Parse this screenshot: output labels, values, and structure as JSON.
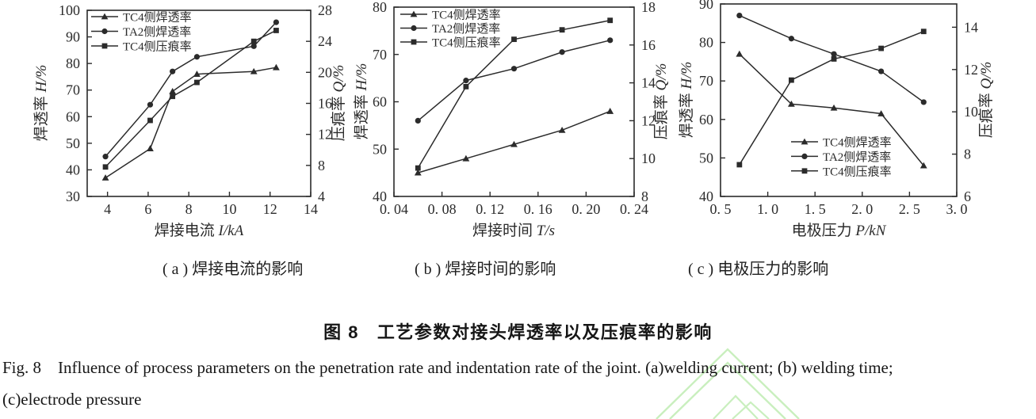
{
  "figure": {
    "caption_cn": "图 8   工艺参数对接头焊透率以及压痕率的影响",
    "caption_en_line1": "Fig. 8    Influence of process parameters on the penetration rate and indentation rate of the joint. (a)welding current; (b) welding time;",
    "caption_en_line2": "(c)electrode pressure",
    "subcaptions": [
      "( a ) 焊接电流的影响",
      "( b ) 焊接时间的影响",
      "( c ) 电极压力的影响"
    ]
  },
  "colors": {
    "line": "#2b2b2b",
    "text": "#1f1f1f",
    "watermark": "#c9efbe",
    "background": "#ffffff"
  },
  "chart_data": [
    {
      "type": "line",
      "panel": "a",
      "title": "",
      "xlabel": "焊接电流 I/kA",
      "ylabel_left": "焊透率 H/%",
      "ylabel_right": "压痕率 Q/%",
      "x_range": [
        3,
        14
      ],
      "x_tick_values": [
        4,
        6,
        8,
        10,
        12,
        14
      ],
      "x_tick_labels": [
        "4",
        "6",
        "8",
        "10",
        "12",
        "14"
      ],
      "y_left_range": [
        30,
        100
      ],
      "y_left_ticks": [
        30,
        40,
        50,
        60,
        70,
        80,
        90,
        100
      ],
      "y_right_range": [
        4,
        28
      ],
      "y_right_ticks": [
        4,
        8,
        12,
        16,
        20,
        24,
        28
      ],
      "grid": false,
      "legend_position": "top-left",
      "x": [
        3.9,
        6.1,
        7.2,
        8.4,
        11.2,
        12.3
      ],
      "series": [
        {
          "name": "TC4侧焊透率",
          "marker": "triangle",
          "axis": "left",
          "values": [
            37,
            48,
            69.5,
            76,
            77,
            78.5
          ]
        },
        {
          "name": "TA2侧焊透率",
          "marker": "circle",
          "axis": "left",
          "values": [
            45,
            64.5,
            77,
            82.5,
            86.5,
            95.5
          ]
        },
        {
          "name": "TC4侧压痕率",
          "marker": "square",
          "axis": "right",
          "values": [
            7.8,
            13.8,
            16.9,
            18.7,
            24,
            25.4
          ]
        }
      ]
    },
    {
      "type": "line",
      "panel": "b",
      "title": "",
      "xlabel": "焊接时间 T/s",
      "ylabel_left": "焊透率 H/%",
      "ylabel_right": "压痕率 Q/%",
      "x_range": [
        0.04,
        0.24
      ],
      "x_tick_values": [
        0.04,
        0.08,
        0.12,
        0.16,
        0.2,
        0.24
      ],
      "x_tick_labels": [
        "0. 04",
        "0. 08",
        "0. 12",
        "0. 16",
        "0. 20",
        "0. 24"
      ],
      "y_left_range": [
        40,
        80
      ],
      "y_left_ticks": [
        40,
        50,
        60,
        70,
        80
      ],
      "y_right_range": [
        8,
        18
      ],
      "y_right_ticks": [
        8,
        10,
        12,
        14,
        16,
        18
      ],
      "grid": false,
      "legend_position": "top-left",
      "x": [
        0.06,
        0.1,
        0.14,
        0.18,
        0.22
      ],
      "series": [
        {
          "name": "TC4侧焊透率",
          "marker": "triangle",
          "axis": "left",
          "values": [
            45,
            48,
            51,
            54,
            58
          ]
        },
        {
          "name": "TA2侧焊透率",
          "marker": "circle",
          "axis": "left",
          "values": [
            56,
            64.5,
            67,
            70.5,
            73
          ]
        },
        {
          "name": "TC4侧压痕率",
          "marker": "square",
          "axis": "right",
          "values": [
            9.5,
            13.8,
            16.3,
            16.8,
            17.3
          ]
        }
      ]
    },
    {
      "type": "line",
      "panel": "c",
      "title": "",
      "xlabel": "电极压力 P/kN",
      "ylabel_left": "焊透率 H/%",
      "ylabel_right": "压痕率 Q/%",
      "x_range": [
        0.5,
        3.0
      ],
      "x_tick_values": [
        0.5,
        1.0,
        1.5,
        2.0,
        2.5,
        3.0
      ],
      "x_tick_labels": [
        "0. 5",
        "1. 0",
        "1. 5",
        "2. 0",
        "2. 5",
        "3. 0"
      ],
      "y_left_range": [
        40,
        90
      ],
      "y_left_ticks": [
        40,
        50,
        60,
        70,
        80,
        90
      ],
      "y_right_range": [
        6,
        15.1
      ],
      "y_right_ticks": [
        6,
        8,
        10,
        12,
        14
      ],
      "grid": false,
      "legend_position": "center-right",
      "x": [
        0.7,
        1.25,
        1.7,
        2.2,
        2.65
      ],
      "series": [
        {
          "name": "TC4侧焊透率",
          "marker": "triangle",
          "axis": "left",
          "values": [
            77,
            64,
            63,
            61.5,
            48
          ]
        },
        {
          "name": "TA2侧焊透率",
          "marker": "circle",
          "axis": "left",
          "values": [
            87,
            81,
            77,
            72.5,
            64.5
          ]
        },
        {
          "name": "TC4侧压痕率",
          "marker": "square",
          "axis": "right",
          "values": [
            7.5,
            11.5,
            12.5,
            13,
            13.8
          ]
        }
      ]
    }
  ]
}
